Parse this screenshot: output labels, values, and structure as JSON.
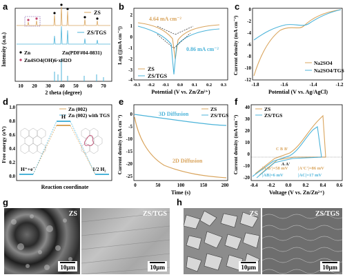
{
  "panels": {
    "a": {
      "label": "a",
      "ylabel": "Intensity (a.u.)",
      "xlabel": "2 theta (degree)",
      "legend": [
        "ZS",
        "ZS/TGS",
        "Zn",
        "Zn(PDF#04-0831)",
        "Zn4SO4(OH)6·xH2O"
      ],
      "xticks": [
        "10",
        "20",
        "30",
        "40",
        "50",
        "60",
        "70"
      ]
    },
    "b": {
      "label": "b",
      "ylabel": "Log (|j|mA cm⁻²|)",
      "xlabel": "Potential (V vs. Zn/Zn²⁺)",
      "legend": [
        "ZS",
        "ZS/TGS"
      ],
      "annotations": [
        "4.64 mA cm⁻²",
        "0.86 mA cm⁻²"
      ],
      "xticks": [
        "-0.3",
        "-0.2",
        "-0.1",
        "0.0",
        "0.1",
        "0.2",
        "0.3"
      ],
      "yticks": [
        "2",
        "1",
        "0",
        "-1",
        "-2",
        "-3",
        "-4"
      ]
    },
    "c": {
      "label": "c",
      "ylabel": "Current density (mA cm⁻²)",
      "xlabel": "Potential (V vs. Ag/AgCl)",
      "legend": [
        "Na2SO4",
        "Na2SO4/TGS"
      ],
      "xticks": [
        "-1.8",
        "-1.6",
        "-1.4",
        "-1.2"
      ],
      "yticks": [
        "0",
        "-2",
        "-4",
        "-6",
        "-8",
        "-10",
        "-12"
      ]
    },
    "d": {
      "label": "d",
      "ylabel": "Free energy (eV)",
      "xlabel": "Reaction coordinate",
      "legend": [
        "Zn (002)",
        "Zn (002) with TGS"
      ],
      "annotations": [
        "H",
        "H⁺+e⁻",
        "1/2 H₂"
      ],
      "yticks": [
        "1.0",
        "0.8",
        "0.6",
        "0.4",
        "0.2",
        "0.0"
      ]
    },
    "e": {
      "label": "e",
      "ylabel": "Current density (mA cm⁻²)",
      "xlabel": "Time (s)",
      "legend": [
        "ZS",
        "ZS/TGS"
      ],
      "annotations": [
        "3D Diffusion",
        "2D Diffusion"
      ],
      "xticks": [
        "0",
        "50",
        "100",
        "150",
        "200"
      ],
      "yticks": [
        "0",
        "-5",
        "-10",
        "-15",
        "-20",
        "-25"
      ]
    },
    "f": {
      "label": "f",
      "ylabel": "Current density (mA cm⁻²)",
      "xlabel": "Voltage (V vs. Zn/Zn²⁺)",
      "legend": [
        "ZS",
        "ZS/TGS"
      ],
      "annotations": [
        "C",
        "B",
        "B'",
        "A",
        "A'"
      ],
      "values": [
        "|A'B'|=58 mV",
        "|A'C'|=86 mV",
        "|AB|=6 mV",
        "|AC|=17 mV"
      ],
      "xticks": [
        "-0.4",
        "-0.2",
        "0.0",
        "0.2",
        "0.4",
        "0.6"
      ],
      "yticks": [
        "40",
        "30",
        "20",
        "10",
        "0",
        "-10",
        "-20"
      ]
    },
    "g": {
      "label": "g",
      "images": [
        {
          "label": "ZS",
          "scale": "10μm"
        },
        {
          "label": "ZS/TGS",
          "scale": "10μm"
        }
      ]
    },
    "h": {
      "label": "h",
      "images": [
        {
          "label": "ZS",
          "scale": "10μm"
        },
        {
          "label": "ZS/TGS",
          "scale": "10μm"
        }
      ]
    }
  },
  "colors": {
    "zs": "#d9a45c",
    "zstgs": "#4bb3d9",
    "black": "#000000",
    "pink": "#c0406a"
  }
}
